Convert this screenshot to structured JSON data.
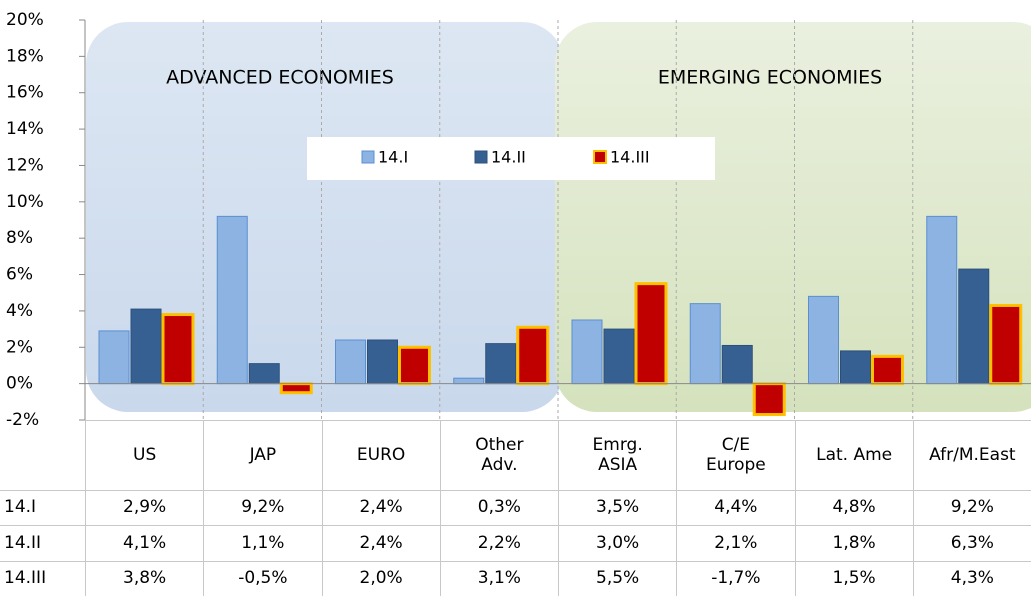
{
  "chart_data": {
    "type": "bar",
    "categories": [
      "US",
      "JAP",
      "EURO",
      "Other\nAdv.",
      "Emrg.\nASIA",
      "C/E\nEurope",
      "Lat. Ame",
      "Afr/M.East"
    ],
    "series": [
      {
        "name": "14.I",
        "color": "#8db3e2",
        "border": "#5b8fd0",
        "values": [
          2.9,
          9.2,
          2.4,
          0.3,
          3.5,
          4.4,
          4.8,
          9.2
        ],
        "value_labels": [
          "2,9%",
          "9,2%",
          "2,4%",
          "0,3%",
          "3,5%",
          "4,4%",
          "4,8%",
          "9,2%"
        ]
      },
      {
        "name": "14.II",
        "color": "#376092",
        "border": "#2c4f7a",
        "values": [
          4.1,
          1.1,
          2.4,
          2.2,
          3.0,
          2.1,
          1.8,
          6.3
        ],
        "value_labels": [
          "4,1%",
          "1,1%",
          "2,4%",
          "2,2%",
          "3,0%",
          "2,1%",
          "1,8%",
          "6,3%"
        ]
      },
      {
        "name": "14.III",
        "color": "#c00000",
        "border": "#ffc000",
        "values": [
          3.8,
          -0.5,
          2.0,
          3.1,
          5.5,
          -1.7,
          1.5,
          4.3
        ],
        "value_labels": [
          "3,8%",
          "-0,5%",
          "2,0%",
          "3,1%",
          "5,5%",
          "-1,7%",
          "1,5%",
          "4,3%"
        ]
      }
    ],
    "annotations": [
      "ADVANCED ECONOMIES",
      "EMERGING ECONOMIES"
    ],
    "ylim": [
      -2,
      20
    ],
    "yticks": [
      {
        "value": -2,
        "label": "-2%"
      },
      {
        "value": 0,
        "label": "0%"
      },
      {
        "value": 2,
        "label": "2%"
      },
      {
        "value": 4,
        "label": "4%"
      },
      {
        "value": 6,
        "label": "6%"
      },
      {
        "value": 8,
        "label": "8%"
      },
      {
        "value": 10,
        "label": "10%"
      },
      {
        "value": 12,
        "label": "12%"
      },
      {
        "value": 14,
        "label": "14%"
      },
      {
        "value": 16,
        "label": "16%"
      },
      {
        "value": 18,
        "label": "18%"
      },
      {
        "value": 20,
        "label": "20%"
      }
    ],
    "grid": true,
    "legend": "top"
  }
}
